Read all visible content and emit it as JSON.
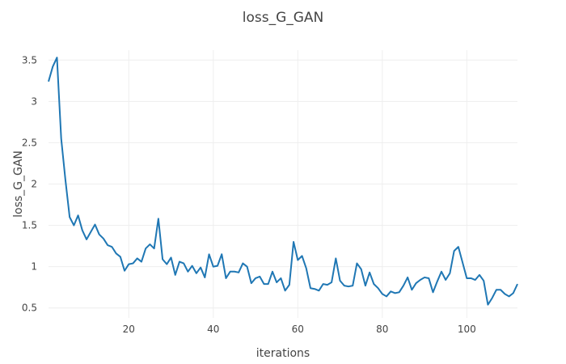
{
  "chart_data": {
    "type": "line",
    "title": "loss_G_GAN",
    "xlabel": "iterations",
    "ylabel": "loss_G_GAN",
    "xlim": [
      1,
      112
    ],
    "ylim": [
      0.38,
      3.62
    ],
    "x_ticks": [
      20,
      40,
      60,
      80,
      100
    ],
    "y_ticks": [
      0.5,
      1,
      1.5,
      2,
      2.5,
      3,
      3.5
    ],
    "grid": true,
    "colors": {
      "line": "#1f77b4",
      "grid": "#eeeeee",
      "zero_line": "#444444"
    },
    "series": [
      {
        "name": "",
        "x": [
          1,
          2,
          3,
          4,
          5,
          6,
          7,
          8,
          9,
          10,
          11,
          12,
          13,
          14,
          15,
          16,
          17,
          18,
          19,
          20,
          21,
          22,
          23,
          24,
          25,
          26,
          27,
          28,
          29,
          30,
          31,
          32,
          33,
          34,
          35,
          36,
          37,
          38,
          39,
          40,
          41,
          42,
          43,
          44,
          45,
          46,
          47,
          48,
          49,
          50,
          51,
          52,
          53,
          54,
          55,
          56,
          57,
          58,
          59,
          60,
          61,
          62,
          63,
          64,
          65,
          66,
          67,
          68,
          69,
          70,
          71,
          72,
          73,
          74,
          75,
          76,
          77,
          78,
          79,
          80,
          81,
          82,
          83,
          84,
          85,
          86,
          87,
          88,
          89,
          90,
          91,
          92,
          93,
          94,
          95,
          96,
          97,
          98,
          99,
          100,
          101,
          102,
          103,
          104,
          105,
          106,
          107,
          108,
          109,
          110,
          111,
          112
        ],
        "y": [
          3.24,
          3.42,
          3.53,
          2.55,
          2.05,
          1.6,
          1.5,
          1.62,
          1.44,
          1.33,
          1.42,
          1.51,
          1.39,
          1.34,
          1.26,
          1.24,
          1.16,
          1.12,
          0.95,
          1.03,
          1.04,
          1.1,
          1.06,
          1.22,
          1.27,
          1.22,
          1.58,
          1.09,
          1.03,
          1.11,
          0.9,
          1.06,
          1.04,
          0.94,
          1.01,
          0.92,
          0.99,
          0.87,
          1.15,
          1.0,
          1.01,
          1.15,
          0.86,
          0.94,
          0.94,
          0.93,
          1.04,
          1.0,
          0.8,
          0.86,
          0.88,
          0.79,
          0.79,
          0.94,
          0.81,
          0.86,
          0.71,
          0.78,
          1.3,
          1.08,
          1.13,
          0.98,
          0.74,
          0.73,
          0.71,
          0.79,
          0.78,
          0.81,
          1.1,
          0.83,
          0.77,
          0.76,
          0.77,
          1.04,
          0.97,
          0.77,
          0.93,
          0.79,
          0.74,
          0.67,
          0.64,
          0.7,
          0.68,
          0.69,
          0.77,
          0.87,
          0.72,
          0.8,
          0.84,
          0.87,
          0.86,
          0.69,
          0.82,
          0.94,
          0.84,
          0.92,
          1.19,
          1.24,
          1.05,
          0.86,
          0.86,
          0.84,
          0.9,
          0.83,
          0.54,
          0.62,
          0.72,
          0.72,
          0.67,
          0.64,
          0.68,
          0.79
        ]
      }
    ]
  }
}
